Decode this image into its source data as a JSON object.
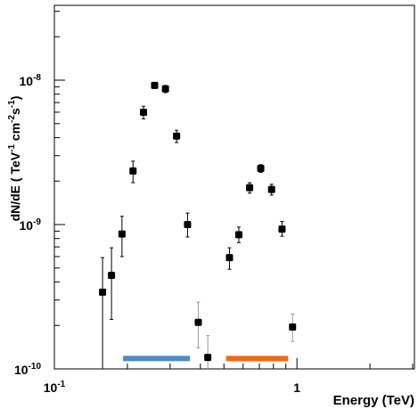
{
  "chart_data": {
    "type": "scatter",
    "xlabel": "Energy  (TeV)",
    "ylabel_parts": {
      "prefix": "dN/dE ( TeV",
      "sup1": "-1",
      "mid": " cm",
      "sup2": "-2",
      "s": "s",
      "sup3": "-1",
      "suffix": ")"
    },
    "x_scale": "log",
    "y_scale": "log",
    "xlim": [
      0.1,
      3.05
    ],
    "ylim": [
      1e-10,
      3.3e-08
    ],
    "x_ticks": [
      {
        "value": 0.1,
        "base": "10",
        "exp": "-1"
      },
      {
        "value": 1,
        "label": "1"
      }
    ],
    "y_ticks": [
      {
        "value": 1e-10,
        "base": "10",
        "exp": "-10"
      },
      {
        "value": 1e-09,
        "base": "10",
        "exp": "-9"
      },
      {
        "value": 1e-08,
        "base": "10",
        "exp": "-8"
      }
    ],
    "grid": false,
    "points": [
      {
        "x": 0.158,
        "y": 3.4e-10,
        "lo": 1e-10,
        "hi": 5.9e-10,
        "dark": true
      },
      {
        "x": 0.172,
        "y": 4.45e-10,
        "lo": 2.2e-10,
        "hi": 6.9e-10,
        "dark": true
      },
      {
        "x": 0.19,
        "y": 8.6e-10,
        "lo": 6e-10,
        "hi": 1.14e-09,
        "dark": true
      },
      {
        "x": 0.211,
        "y": 2.35e-09,
        "lo": 1.95e-09,
        "hi": 2.75e-09,
        "dark": true
      },
      {
        "x": 0.233,
        "y": 6e-09,
        "lo": 5.4e-09,
        "hi": 6.6e-09,
        "dark": true
      },
      {
        "x": 0.259,
        "y": 9.2e-09,
        "lo": 8.8e-09,
        "hi": 9.6e-09,
        "dark": true
      },
      {
        "x": 0.287,
        "y": 8.7e-09,
        "lo": 8.2e-09,
        "hi": 9.2e-09,
        "dark": true
      },
      {
        "x": 0.319,
        "y": 4.1e-09,
        "lo": 3.7e-09,
        "hi": 4.5e-09,
        "dark": true
      },
      {
        "x": 0.354,
        "y": 1e-09,
        "lo": 8.2e-10,
        "hi": 1.2e-09,
        "dark": true
      },
      {
        "x": 0.392,
        "y": 2.1e-10,
        "lo": 1.4e-10,
        "hi": 2.9e-10,
        "dark": false
      },
      {
        "x": 0.429,
        "y": 1.2e-10,
        "lo": 1e-10,
        "hi": 1.7e-10,
        "dark": false
      },
      {
        "x": 0.527,
        "y": 5.9e-10,
        "lo": 4.9e-10,
        "hi": 6.9e-10,
        "dark": true
      },
      {
        "x": 0.576,
        "y": 8.5e-10,
        "lo": 7.5e-10,
        "hi": 9.6e-10,
        "dark": true
      },
      {
        "x": 0.638,
        "y": 1.8e-09,
        "lo": 1.65e-09,
        "hi": 1.95e-09,
        "dark": true
      },
      {
        "x": 0.709,
        "y": 2.45e-09,
        "lo": 2.3e-09,
        "hi": 2.6e-09,
        "dark": true
      },
      {
        "x": 0.786,
        "y": 1.75e-09,
        "lo": 1.6e-09,
        "hi": 1.9e-09,
        "dark": true
      },
      {
        "x": 0.868,
        "y": 9.3e-10,
        "lo": 8.3e-10,
        "hi": 1.05e-09,
        "dark": true
      },
      {
        "x": 0.959,
        "y": 1.95e-10,
        "lo": 1.55e-10,
        "hi": 2.4e-10,
        "dark": false
      }
    ],
    "bands": [
      {
        "x_start": 0.192,
        "x_end": 0.362,
        "y": 1.18e-10,
        "color": "#4a8ec6"
      },
      {
        "x_start": 0.51,
        "x_end": 0.92,
        "y": 1.18e-10,
        "color": "#f26a13"
      }
    ],
    "colors": {
      "marker": "#000000",
      "errorbar_dark": "#000000",
      "errorbar_light": "#9a9a9a",
      "frame": "#000000"
    }
  }
}
